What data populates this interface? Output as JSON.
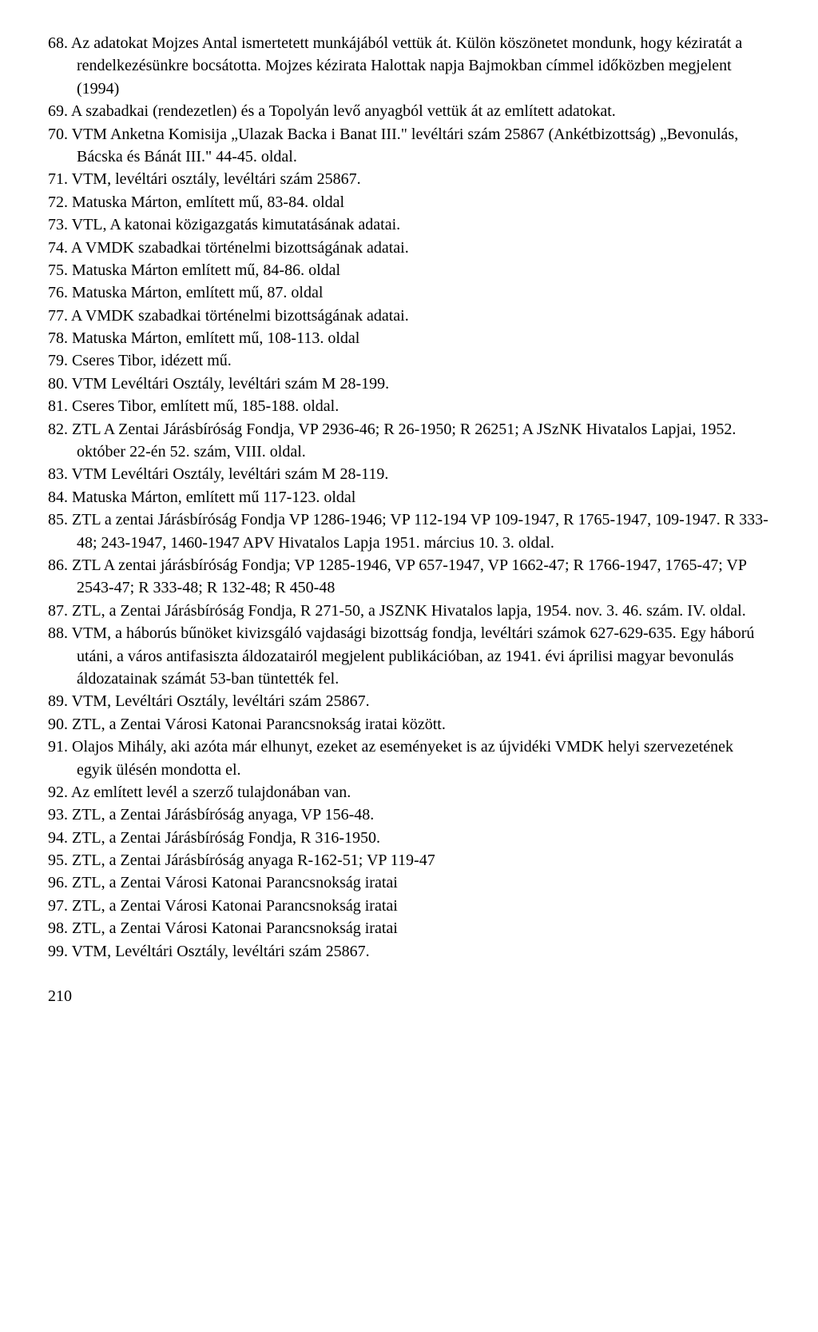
{
  "entries": [
    "68. Az adatokat Mojzes Antal ismertetett munkájából vettük át. Külön köszönetet mondunk, hogy kéziratát a rendelkezésünkre bocsátotta. Mojzes kézirata Halottak napja Bajmokban címmel időközben megjelent (1994)",
    "69. A szabadkai (rendezetlen) és a Topolyán levő anyagból vettük át az említett adatokat.",
    "70. VTM Anketna Komisija „Ulazak Backa i Banat III.\" levéltári szám 25867 (Ankétbizottság) „Bevonulás, Bácska és Bánát III.\" 44-45. oldal.",
    "71. VTM, levéltári osztály, levéltári szám 25867.",
    "72. Matuska Márton, említett mű, 83-84. oldal",
    "73. VTL, A katonai közigazgatás kimutatásának adatai.",
    "74. A VMDK szabadkai történelmi bizottságának adatai.",
    "75. Matuska Márton említett mű, 84-86. oldal",
    "76. Matuska Márton, említett mű, 87. oldal",
    "77. A VMDK szabadkai történelmi bizottságának adatai.",
    "78. Matuska Márton, említett mű, 108-113. oldal",
    "79. Cseres Tibor, idézett mű.",
    "80. VTM Levéltári Osztály, levéltári szám M 28-199.",
    "81. Cseres Tibor, említett mű, 185-188. oldal.",
    "82. ZTL A Zentai Járásbíróság Fondja, VP 2936-46; R 26-1950; R 26251; A JSzNK Hivatalos Lapjai, 1952. október 22-én 52. szám, VIII. oldal.",
    "83. VTM Levéltári Osztály, levéltári szám M 28-119.",
    "84. Matuska Márton, említett mű 117-123. oldal",
    "85. ZTL a zentai Járásbíróság Fondja VP 1286-1946; VP 112-194 VP 109-1947, R 1765-1947, 109-1947. R 333-48; 243-1947, 1460-1947 APV Hivatalos Lapja 1951. március 10. 3. oldal.",
    "86. ZTL A zentai járásbíróság Fondja; VP 1285-1946, VP 657-1947, VP 1662-47; R 1766-1947, 1765-47; VP 2543-47; R 333-48; R 132-48; R 450-48",
    "87. ZTL, a Zentai Járásbíróság Fondja, R 271-50, a JSZNK Hivatalos lapja, 1954. nov. 3. 46. szám. IV. oldal.",
    "88. VTM, a háborús bűnöket kivizsgáló vajdasági bizottság fondja, levéltári számok 627-629-635. Egy háború utáni, a város antifasiszta áldozatairól megjelent publikációban, az 1941. évi áprilisi magyar bevonulás áldozatainak számát 53-ban tüntették fel.",
    "89. VTM, Levéltári Osztály, levéltári szám 25867.",
    "90. ZTL, a Zentai Városi Katonai Parancsnokság iratai között.",
    "91. Olajos Mihály, aki azóta már elhunyt, ezeket az eseményeket is az újvidéki VMDK helyi szervezetének egyik ülésén mondotta el.",
    "92. Az említett levél a szerző tulajdonában van.",
    "93. ZTL, a Zentai Járásbíróság anyaga, VP 156-48.",
    "94. ZTL, a Zentai Járásbíróság Fondja, R 316-1950.",
    "95. ZTL, a Zentai Járásbíróság anyaga R-162-51; VP 119-47",
    "96. ZTL, a Zentai Városi Katonai Parancsnokság iratai",
    "97. ZTL, a Zentai Városi Katonai Parancsnokság iratai",
    "98. ZTL, a Zentai Városi Katonai Parancsnokság iratai",
    "99. VTM, Levéltári Osztály, levéltári szám 25867."
  ],
  "page_number": "210"
}
